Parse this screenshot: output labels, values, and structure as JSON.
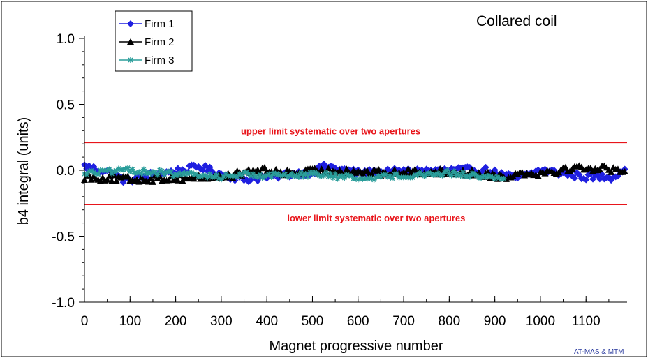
{
  "chart_data": {
    "type": "line",
    "title": "Collared coil",
    "xlabel": "Magnet progressive number",
    "ylabel": "b4 integral (units)",
    "xlim": [
      0,
      1190
    ],
    "ylim": [
      -1.0,
      1.0
    ],
    "x_ticks": [
      0,
      100,
      200,
      300,
      400,
      500,
      600,
      700,
      800,
      900,
      1000,
      1100
    ],
    "x_tick_labels": [
      "0",
      "100",
      "200",
      "300",
      "400",
      "500",
      "600",
      "700",
      "800",
      "900",
      "1000",
      "1100"
    ],
    "y_ticks": [
      -1.0,
      -0.5,
      0.0,
      0.5,
      1.0
    ],
    "y_tick_labels": [
      "-1.0",
      "-0.5",
      "0.0",
      "0.5",
      "1.0"
    ],
    "grid": false,
    "legend_position": "top-left",
    "series": [
      {
        "name": "Firm 1",
        "color": "#1f1fe0",
        "marker": "diamond",
        "x_range": [
          0,
          1185
        ],
        "step": 5,
        "baseline": [
          [
            0,
            0.03
          ],
          [
            60,
            -0.02
          ],
          [
            90,
            -0.08
          ],
          [
            150,
            -0.03
          ],
          [
            220,
            0.0
          ],
          [
            250,
            0.03
          ],
          [
            300,
            -0.03
          ],
          [
            350,
            -0.07
          ],
          [
            400,
            -0.05
          ],
          [
            500,
            -0.01
          ],
          [
            530,
            0.03
          ],
          [
            600,
            -0.02
          ],
          [
            700,
            -0.01
          ],
          [
            800,
            0.0
          ],
          [
            880,
            0.0
          ],
          [
            920,
            -0.04
          ],
          [
            950,
            -0.06
          ],
          [
            1000,
            0.0
          ],
          [
            1100,
            -0.05
          ],
          [
            1160,
            -0.05
          ],
          [
            1185,
            0.02
          ]
        ],
        "amplitude": 0.025
      },
      {
        "name": "Firm 2",
        "color": "#000000",
        "marker": "triangle",
        "x_range": [
          0,
          1185
        ],
        "step": 5,
        "baseline": [
          [
            0,
            -0.05
          ],
          [
            100,
            -0.07
          ],
          [
            200,
            -0.06
          ],
          [
            300,
            -0.05
          ],
          [
            380,
            0.0
          ],
          [
            450,
            -0.02
          ],
          [
            550,
            0.0
          ],
          [
            650,
            -0.02
          ],
          [
            750,
            -0.01
          ],
          [
            850,
            -0.02
          ],
          [
            920,
            -0.05
          ],
          [
            960,
            -0.02
          ],
          [
            1000,
            -0.02
          ],
          [
            1080,
            0.02
          ],
          [
            1150,
            0.01
          ],
          [
            1185,
            0.0
          ]
        ],
        "amplitude": 0.025
      },
      {
        "name": "Firm 3",
        "color": "#2a9d9a",
        "marker": "asterisk",
        "x_range": [
          0,
          920
        ],
        "step": 5,
        "baseline": [
          [
            0,
            -0.02
          ],
          [
            60,
            -0.01
          ],
          [
            100,
            0.0
          ],
          [
            200,
            -0.03
          ],
          [
            300,
            -0.05
          ],
          [
            350,
            -0.03
          ],
          [
            400,
            -0.04
          ],
          [
            500,
            -0.03
          ],
          [
            600,
            -0.06
          ],
          [
            700,
            -0.04
          ],
          [
            800,
            -0.02
          ],
          [
            850,
            -0.04
          ],
          [
            920,
            -0.06
          ]
        ],
        "amplitude": 0.02
      }
    ],
    "reference_lines": [
      {
        "y": 0.21,
        "label": "upper limit systematic over two apertures",
        "color": "#e8151b",
        "label_at_x": 540
      },
      {
        "y": -0.26,
        "label": "lower limit systematic over two apertures",
        "color": "#e8151b",
        "label_at_x": 640
      }
    ],
    "credit": "AT-MAS & MTM"
  }
}
